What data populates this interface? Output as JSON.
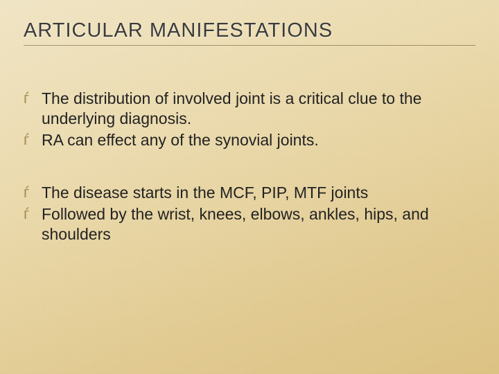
{
  "slide": {
    "title": "ARTICULAR MANIFESTATIONS",
    "title_color": "#3b3b3b",
    "title_fontsize": 29,
    "underline_color": "rgba(90,70,30,0.5)",
    "bullet_glyph": "ѓ",
    "bullet_color": "#a38b4f",
    "body_fontsize": 23,
    "body_color": "#222222",
    "background_gradient": [
      "#f1e6c7",
      "#efe2bd",
      "#ecdcb0",
      "#e7d4a1",
      "#e2cb92",
      "#ddc384"
    ],
    "groups": [
      {
        "items": [
          "The distribution of involved joint is a critical clue to the underlying diagnosis.",
          "RA can effect any of the synovial joints."
        ]
      },
      {
        "items": [
          "The disease starts in the MCF, PIP, MTF joints",
          "Followed by the wrist, knees, elbows, ankles, hips, and shoulders"
        ]
      }
    ]
  }
}
